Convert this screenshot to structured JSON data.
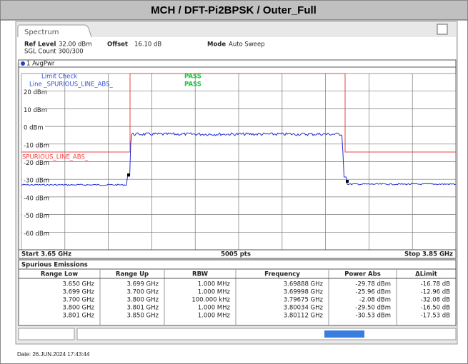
{
  "header": {
    "title": "MCH / DFT-Pi2BPSK / Outer_Full"
  },
  "tab": "Spectrum",
  "settings": {
    "ref_level_label": "Ref Level",
    "ref_level": "32.00 dBm",
    "offset_label": "Offset",
    "offset": "16.10 dB",
    "mode_label": "Mode",
    "mode": "Auto Sweep",
    "sgl_count": "SGL Count 300/300"
  },
  "trace": "1 AvgPwr",
  "limit": {
    "check_label": "Limit Check",
    "check_result": "PASS",
    "line_label": "Line _SPURIOUS_LINE_ABS_",
    "line_result": "PASS",
    "line_name": "SPURIOUS_LINE_ABS_"
  },
  "yticks": [
    "20 dBm",
    "10 dBm",
    "0 dBm",
    "-10 dBm",
    "-20 dBm",
    "-30 dBm",
    "-40 dBm",
    "-50 dBm",
    "-60 dBm"
  ],
  "axis_footer": {
    "start": "Start 3.65 GHz",
    "points": "5005 pts",
    "stop": "Stop 3.85 GHz"
  },
  "table": {
    "title": "Spurious Emissions",
    "columns": [
      "Range Low",
      "Range Up",
      "RBW",
      "Frequency",
      "Power Abs",
      "ΔLimit"
    ],
    "rows": [
      [
        "3.650 GHz",
        "3.699 GHz",
        "1.000 MHz",
        "3.69888 GHz",
        "-29.78 dBm",
        "-16.78 dB"
      ],
      [
        "3.699 GHz",
        "3.700 GHz",
        "1.000 MHz",
        "3.69998 GHz",
        "-25.96 dBm",
        "-12.96 dB"
      ],
      [
        "3.700 GHz",
        "3.800 GHz",
        "100.000 kHz",
        "3.79675 GHz",
        "-2.08 dBm",
        "-32.08 dB"
      ],
      [
        "3.800 GHz",
        "3.801 GHz",
        "1.000 MHz",
        "3.80034 GHz",
        "-29.50 dBm",
        "-16.50 dB"
      ],
      [
        "3.801 GHz",
        "3.850 GHz",
        "1.000 MHz",
        "3.80112 GHz",
        "-30.53 dBm",
        "-17.53 dB"
      ]
    ]
  },
  "date": "Date: 26.JUN.2024 17:43:44"
}
